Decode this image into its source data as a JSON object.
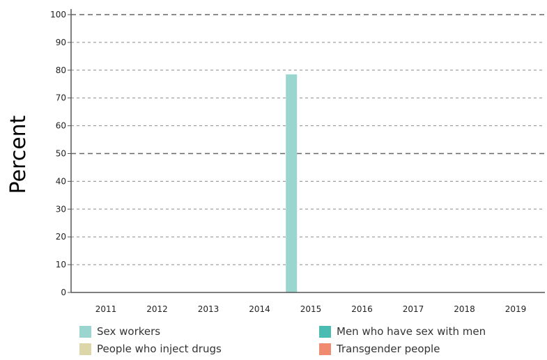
{
  "chart_data": {
    "type": "bar",
    "title": "",
    "xlabel": "",
    "ylabel": "Percent",
    "ylim": [
      0,
      100
    ],
    "yticks": [
      "0",
      "10",
      "20",
      "30",
      "40",
      "50",
      "60",
      "70",
      "80",
      "90",
      "100"
    ],
    "categories": [
      "2011",
      "2012",
      "2013",
      "2014",
      "2015",
      "2016",
      "2017",
      "2018",
      "2019"
    ],
    "grid": "horizontal dashed",
    "legend_position": "bottom",
    "series": [
      {
        "name": "Sex workers",
        "color": "#9ad6cf",
        "values": [
          null,
          null,
          null,
          null,
          78.5,
          null,
          null,
          null,
          null
        ]
      },
      {
        "name": "Men who have sex with men",
        "color": "#4bbcb1",
        "values": [
          null,
          null,
          null,
          null,
          null,
          null,
          null,
          null,
          null
        ]
      },
      {
        "name": "People who inject drugs",
        "color": "#ddd6a8",
        "values": [
          null,
          null,
          null,
          null,
          null,
          null,
          null,
          null,
          null
        ]
      },
      {
        "name": "Transgender people",
        "color": "#f08a70",
        "values": [
          null,
          null,
          null,
          null,
          null,
          null,
          null,
          null,
          null
        ]
      }
    ]
  }
}
